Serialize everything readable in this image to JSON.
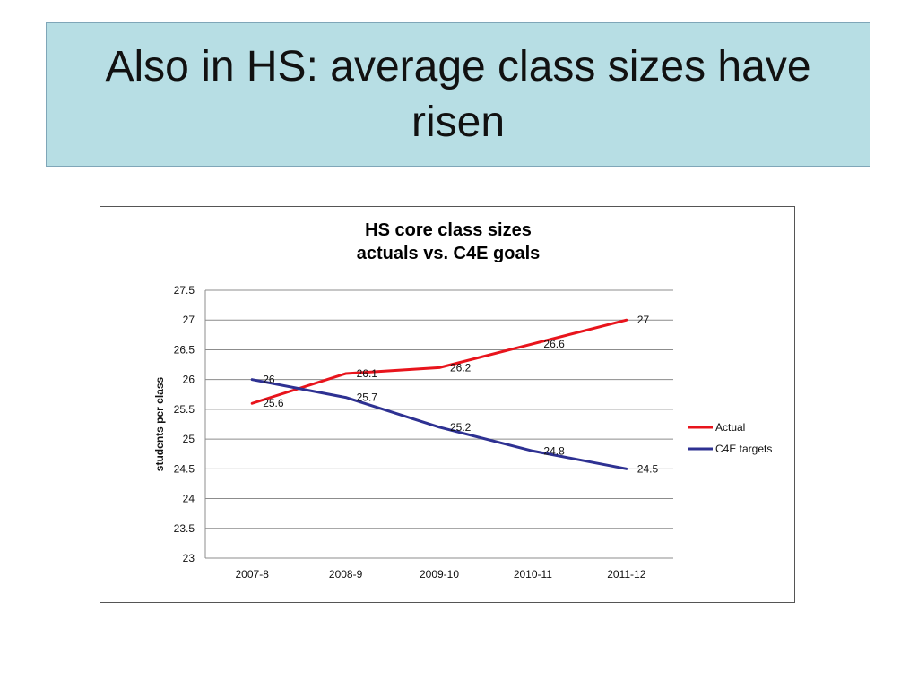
{
  "slide": {
    "title": "Also in HS: average class sizes have risen"
  },
  "chart_data": {
    "type": "line",
    "title_lines": [
      "HS core class sizes",
      "actuals vs. C4E goals"
    ],
    "categories": [
      "2007-8",
      "2008-9",
      "2009-10",
      "2010-11",
      "2011-12"
    ],
    "ylabel": "students per class",
    "ylim": [
      23,
      27.5
    ],
    "yticks": [
      23,
      23.5,
      24,
      24.5,
      25,
      25.5,
      26,
      26.5,
      27,
      27.5
    ],
    "ytick_labels": [
      "23",
      "23.5",
      "24",
      "24.5",
      "25",
      "25.5",
      "26",
      "26.5",
      "27",
      "27.5"
    ],
    "grid": true,
    "legend_position": "right",
    "series": [
      {
        "name": "Actual",
        "color": "#e8141c",
        "values": [
          25.6,
          26.1,
          26.2,
          26.6,
          27
        ],
        "labels": [
          "25.6",
          "26.1",
          "26.2",
          "26.6",
          "27"
        ]
      },
      {
        "name": "C4E targets",
        "color": "#2e3192",
        "values": [
          26,
          25.7,
          25.2,
          24.8,
          24.5
        ],
        "labels": [
          "26",
          "25.7",
          "25.2",
          "24.8",
          "24.5"
        ]
      }
    ]
  }
}
